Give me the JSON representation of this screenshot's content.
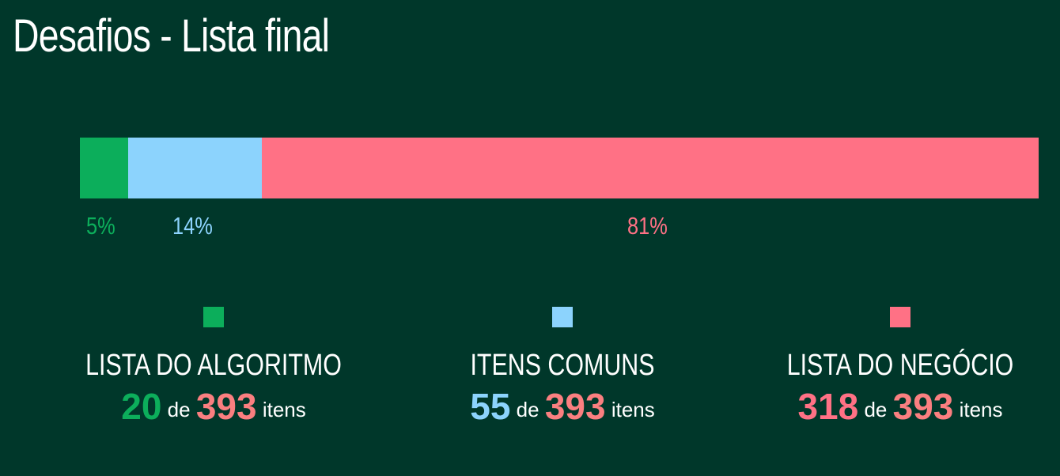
{
  "title": "Desafios - Lista final",
  "chart_data": {
    "type": "bar",
    "orientation": "horizontal-stacked",
    "series": [
      {
        "name": "LISTA DO ALGORITMO",
        "percent": 5,
        "percent_label": "5%",
        "count": "20",
        "total": "393",
        "color": "#0cae5b"
      },
      {
        "name": "ITENS COMUNS",
        "percent": 14,
        "percent_label": "14%",
        "count": "55",
        "total": "393",
        "color": "#8cd3fd"
      },
      {
        "name": "LISTA DO NEGÓCIO",
        "percent": 81,
        "percent_label": "81%",
        "count": "318",
        "total": "393",
        "color": "#ff7185"
      }
    ],
    "count_connector": "de",
    "count_unit": "itens",
    "total_color": "#fa7f80"
  }
}
